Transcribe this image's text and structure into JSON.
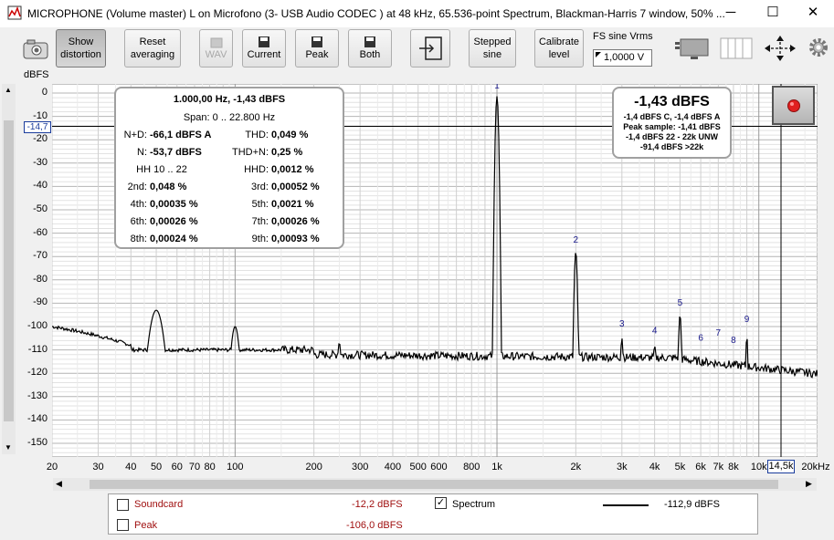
{
  "window": {
    "title": "MICROPHONE (Volume master) L on Microfono (3- USB Audio CODEC ) at 48 kHz, 65.536-point Spectrum, Blackman-Harris 7 window, 50% ...",
    "minimize": "─",
    "maximize": "☐",
    "close": "✕"
  },
  "toolbar": {
    "show_distortion": [
      "Show",
      "distortion"
    ],
    "reset_averaging": [
      "Reset",
      "averaging"
    ],
    "wav": "WAV",
    "current": "Current",
    "peak": "Peak",
    "both": "Both",
    "stepped_sine": [
      "Stepped",
      "sine"
    ],
    "calibrate_level": [
      "Calibrate",
      "level"
    ],
    "fs_label": "FS sine Vrms",
    "fs_value": "1,0000 V"
  },
  "plot": {
    "ylabel": "dBFS",
    "ytick_labels": [
      "0",
      "-10",
      "-20",
      "-30",
      "-40",
      "-50",
      "-60",
      "-70",
      "-80",
      "-90",
      "-100",
      "-110",
      "-120",
      "-130",
      "-140",
      "-150"
    ],
    "xtick_labels": [
      "20",
      "30",
      "40",
      "50",
      "60",
      "70",
      "80",
      "100",
      "200",
      "300",
      "400",
      "500",
      "600",
      "800",
      "1k",
      "2k",
      "3k",
      "4k",
      "5k",
      "6k",
      "7k",
      "8k",
      "10k",
      "20kHz"
    ],
    "cursor_y_label": "-14,7",
    "cursor_x_label": "14,5k",
    "harmonic_labels": [
      "1",
      "2",
      "3",
      "4",
      "5",
      "6",
      "7",
      "8",
      "9"
    ]
  },
  "info_box": {
    "freq_line": "1.000,00 Hz, -1,43 dBFS",
    "span_line": "Span: 0 .. 22.800 Hz",
    "rows": [
      {
        "l1": "N+D:",
        "v1": "-66,1 dBFS A",
        "l2": "THD:",
        "v2": "0,049 %"
      },
      {
        "l1": "N:",
        "v1": "-53,7 dBFS",
        "l2": "THD+N:",
        "v2": "0,25 %"
      },
      {
        "l1": "HH 10 .. 22",
        "v1": "",
        "l2": "HHD:",
        "v2": "0,0012 %"
      },
      {
        "l1": "2nd:",
        "v1": "0,048 %",
        "l2": "3rd:",
        "v2": "0,00052 %"
      },
      {
        "l1": "4th:",
        "v1": "0,00035 %",
        "l2": "5th:",
        "v2": "0,0021 %"
      },
      {
        "l1": "6th:",
        "v1": "0,00026 %",
        "l2": "7th:",
        "v2": "0,00026 %"
      },
      {
        "l1": "8th:",
        "v1": "0,00024 %",
        "l2": "9th:",
        "v2": "0,00093 %"
      }
    ]
  },
  "level_box": {
    "big": "-1,43 dBFS",
    "lines": [
      "-1,4 dBFS C, -1,4 dBFS A",
      "Peak sample: -1,41 dBFS",
      "-1,4 dBFS 22 - 22k UNW",
      "-91,4 dBFS >22k"
    ]
  },
  "legend": {
    "soundcard_label": "Soundcard",
    "soundcard_value": "-12,2 dBFS",
    "peak_label": "Peak",
    "peak_value": "-106,0 dBFS",
    "spectrum_label": "Spectrum",
    "spectrum_value": "-112,9 dBFS",
    "check_mark": "✓"
  },
  "colors": {
    "legend_red": "#a01010",
    "harmonic_blue": "#1a1a8c",
    "record": "#e02020"
  }
}
